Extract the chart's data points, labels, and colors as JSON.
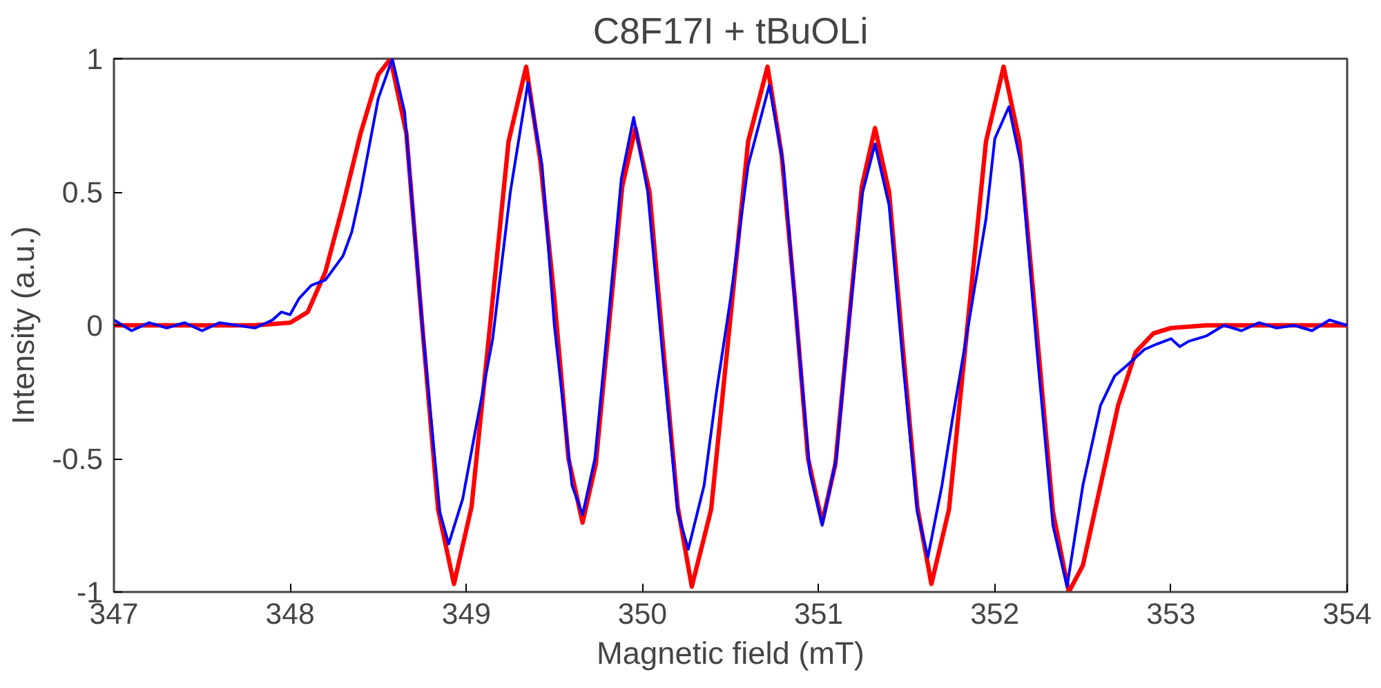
{
  "chart_data": {
    "type": "line",
    "title": "C8F17I + tBuOLi",
    "xlabel": "Magnetic field (mT)",
    "ylabel": "Intensity (a.u.)",
    "xlim": [
      347,
      354
    ],
    "ylim": [
      -1,
      1
    ],
    "xticks": [
      347,
      348,
      349,
      350,
      351,
      352,
      353,
      354
    ],
    "yticks": [
      -1,
      -0.5,
      0,
      0.5,
      1
    ],
    "grid": false,
    "line_style": "solid",
    "series": [
      {
        "color": "#ff0000",
        "x": [
          347.0,
          347.8,
          348.0,
          348.1,
          348.2,
          348.3,
          348.4,
          348.5,
          348.57,
          348.66,
          348.75,
          348.84,
          348.93,
          349.03,
          349.135,
          349.24,
          349.34,
          349.42,
          349.5,
          349.58,
          349.66,
          349.735,
          349.81,
          349.885,
          349.96,
          350.04,
          350.12,
          350.2,
          350.28,
          350.39,
          350.495,
          350.6,
          350.71,
          350.79,
          350.865,
          350.94,
          351.02,
          351.095,
          351.17,
          351.245,
          351.32,
          351.4,
          351.48,
          351.56,
          351.64,
          351.74,
          351.845,
          351.95,
          352.05,
          352.14,
          352.235,
          352.33,
          352.42,
          352.5,
          352.6,
          352.7,
          352.8,
          352.9,
          353.0,
          353.2,
          354.0
        ],
        "values": [
          0,
          0,
          0.01,
          0.05,
          0.2,
          0.45,
          0.72,
          0.94,
          1.0,
          0.72,
          0,
          -0.69,
          -0.97,
          -0.68,
          0,
          0.69,
          0.97,
          0.62,
          0.1,
          -0.5,
          -0.74,
          -0.52,
          0,
          0.52,
          0.74,
          0.5,
          -0.1,
          -0.68,
          -0.98,
          -0.69,
          0,
          0.69,
          0.97,
          0.64,
          0.1,
          -0.5,
          -0.74,
          -0.52,
          0,
          0.52,
          0.74,
          0.5,
          -0.1,
          -0.68,
          -0.97,
          -0.69,
          0,
          0.69,
          0.97,
          0.69,
          0,
          -0.7,
          -1.0,
          -0.9,
          -0.6,
          -0.3,
          -0.1,
          -0.03,
          -0.01,
          0,
          0
        ]
      },
      {
        "color": "#0000ff",
        "x": [
          347.0,
          347.05,
          347.1,
          347.2,
          347.3,
          347.4,
          347.5,
          347.6,
          347.7,
          347.8,
          347.9,
          347.95,
          348.0,
          348.05,
          348.12,
          348.2,
          348.3,
          348.35,
          348.4,
          348.5,
          348.58,
          348.65,
          348.75,
          348.85,
          348.9,
          348.98,
          349.05,
          349.15,
          349.25,
          349.35,
          349.43,
          349.5,
          349.6,
          349.66,
          349.73,
          349.81,
          349.88,
          349.95,
          350.03,
          350.12,
          350.2,
          350.26,
          350.35,
          350.42,
          350.5,
          350.6,
          350.72,
          350.8,
          350.87,
          350.95,
          351.02,
          351.1,
          351.17,
          351.25,
          351.32,
          351.4,
          351.48,
          351.56,
          351.62,
          351.7,
          351.76,
          351.85,
          351.95,
          352.0,
          352.08,
          352.15,
          352.24,
          352.33,
          352.41,
          352.5,
          352.6,
          352.68,
          352.75,
          352.85,
          352.92,
          353.0,
          353.05,
          353.1,
          353.2,
          353.3,
          353.4,
          353.5,
          353.6,
          353.7,
          353.8,
          353.9,
          354.0
        ],
        "values": [
          0.02,
          0.0,
          -0.02,
          0.01,
          -0.01,
          0.01,
          -0.02,
          0.01,
          0.0,
          -0.01,
          0.02,
          0.05,
          0.04,
          0.1,
          0.15,
          0.17,
          0.26,
          0.35,
          0.5,
          0.85,
          1.0,
          0.8,
          0.0,
          -0.7,
          -0.82,
          -0.65,
          -0.4,
          -0.05,
          0.5,
          0.91,
          0.6,
          0.0,
          -0.6,
          -0.71,
          -0.5,
          0.05,
          0.55,
          0.78,
          0.5,
          -0.15,
          -0.7,
          -0.84,
          -0.6,
          -0.25,
          0.1,
          0.6,
          0.9,
          0.6,
          0.05,
          -0.55,
          -0.75,
          -0.5,
          0.0,
          0.5,
          0.68,
          0.45,
          -0.15,
          -0.7,
          -0.87,
          -0.6,
          -0.35,
          0.0,
          0.4,
          0.7,
          0.82,
          0.6,
          -0.1,
          -0.75,
          -0.98,
          -0.6,
          -0.3,
          -0.19,
          -0.15,
          -0.09,
          -0.07,
          -0.05,
          -0.08,
          -0.06,
          -0.04,
          0.0,
          -0.02,
          0.01,
          -0.01,
          0.0,
          -0.02,
          0.02,
          0.0
        ]
      }
    ]
  }
}
